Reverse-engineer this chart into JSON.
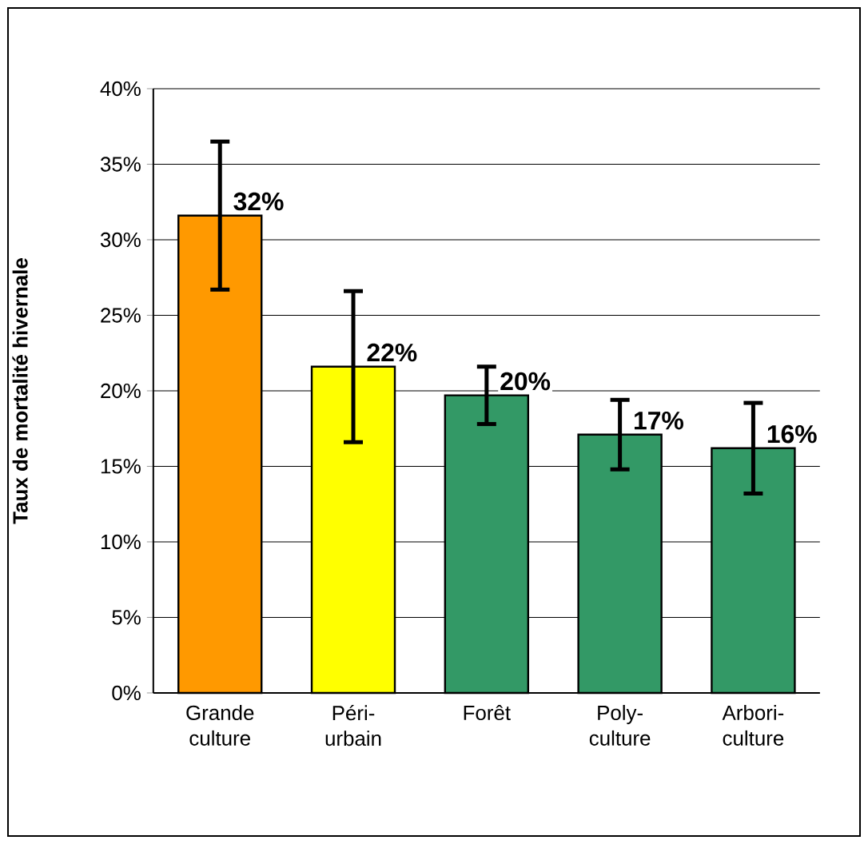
{
  "chart_data": {
    "type": "bar",
    "ylabel": "Taux de mortalité hivernale",
    "categories": [
      "Grande culture",
      "Péri-urbain",
      "Forêt",
      "Poly-culture",
      "Arbori-culture"
    ],
    "values": [
      31.6,
      21.6,
      19.7,
      17.1,
      16.2
    ],
    "colors": [
      "#ff9900",
      "#ffff00",
      "#339966",
      "#339966",
      "#339966"
    ],
    "errors": [
      4.9,
      5.0,
      1.9,
      2.3,
      3.0
    ],
    "value_labels": [
      "32%",
      "22%",
      "20%",
      "17%",
      "16%"
    ],
    "ylim": [
      0,
      40
    ],
    "yticks": [
      {
        "value": 0,
        "label": "0%"
      },
      {
        "value": 5,
        "label": "5%"
      },
      {
        "value": 10,
        "label": "10%"
      },
      {
        "value": 15,
        "label": "15%"
      },
      {
        "value": 20,
        "label": "20%"
      },
      {
        "value": 25,
        "label": "25%"
      },
      {
        "value": 30,
        "label": "30%"
      },
      {
        "value": 35,
        "label": "35%"
      },
      {
        "value": 40,
        "label": "40%"
      }
    ],
    "grid": "y"
  }
}
